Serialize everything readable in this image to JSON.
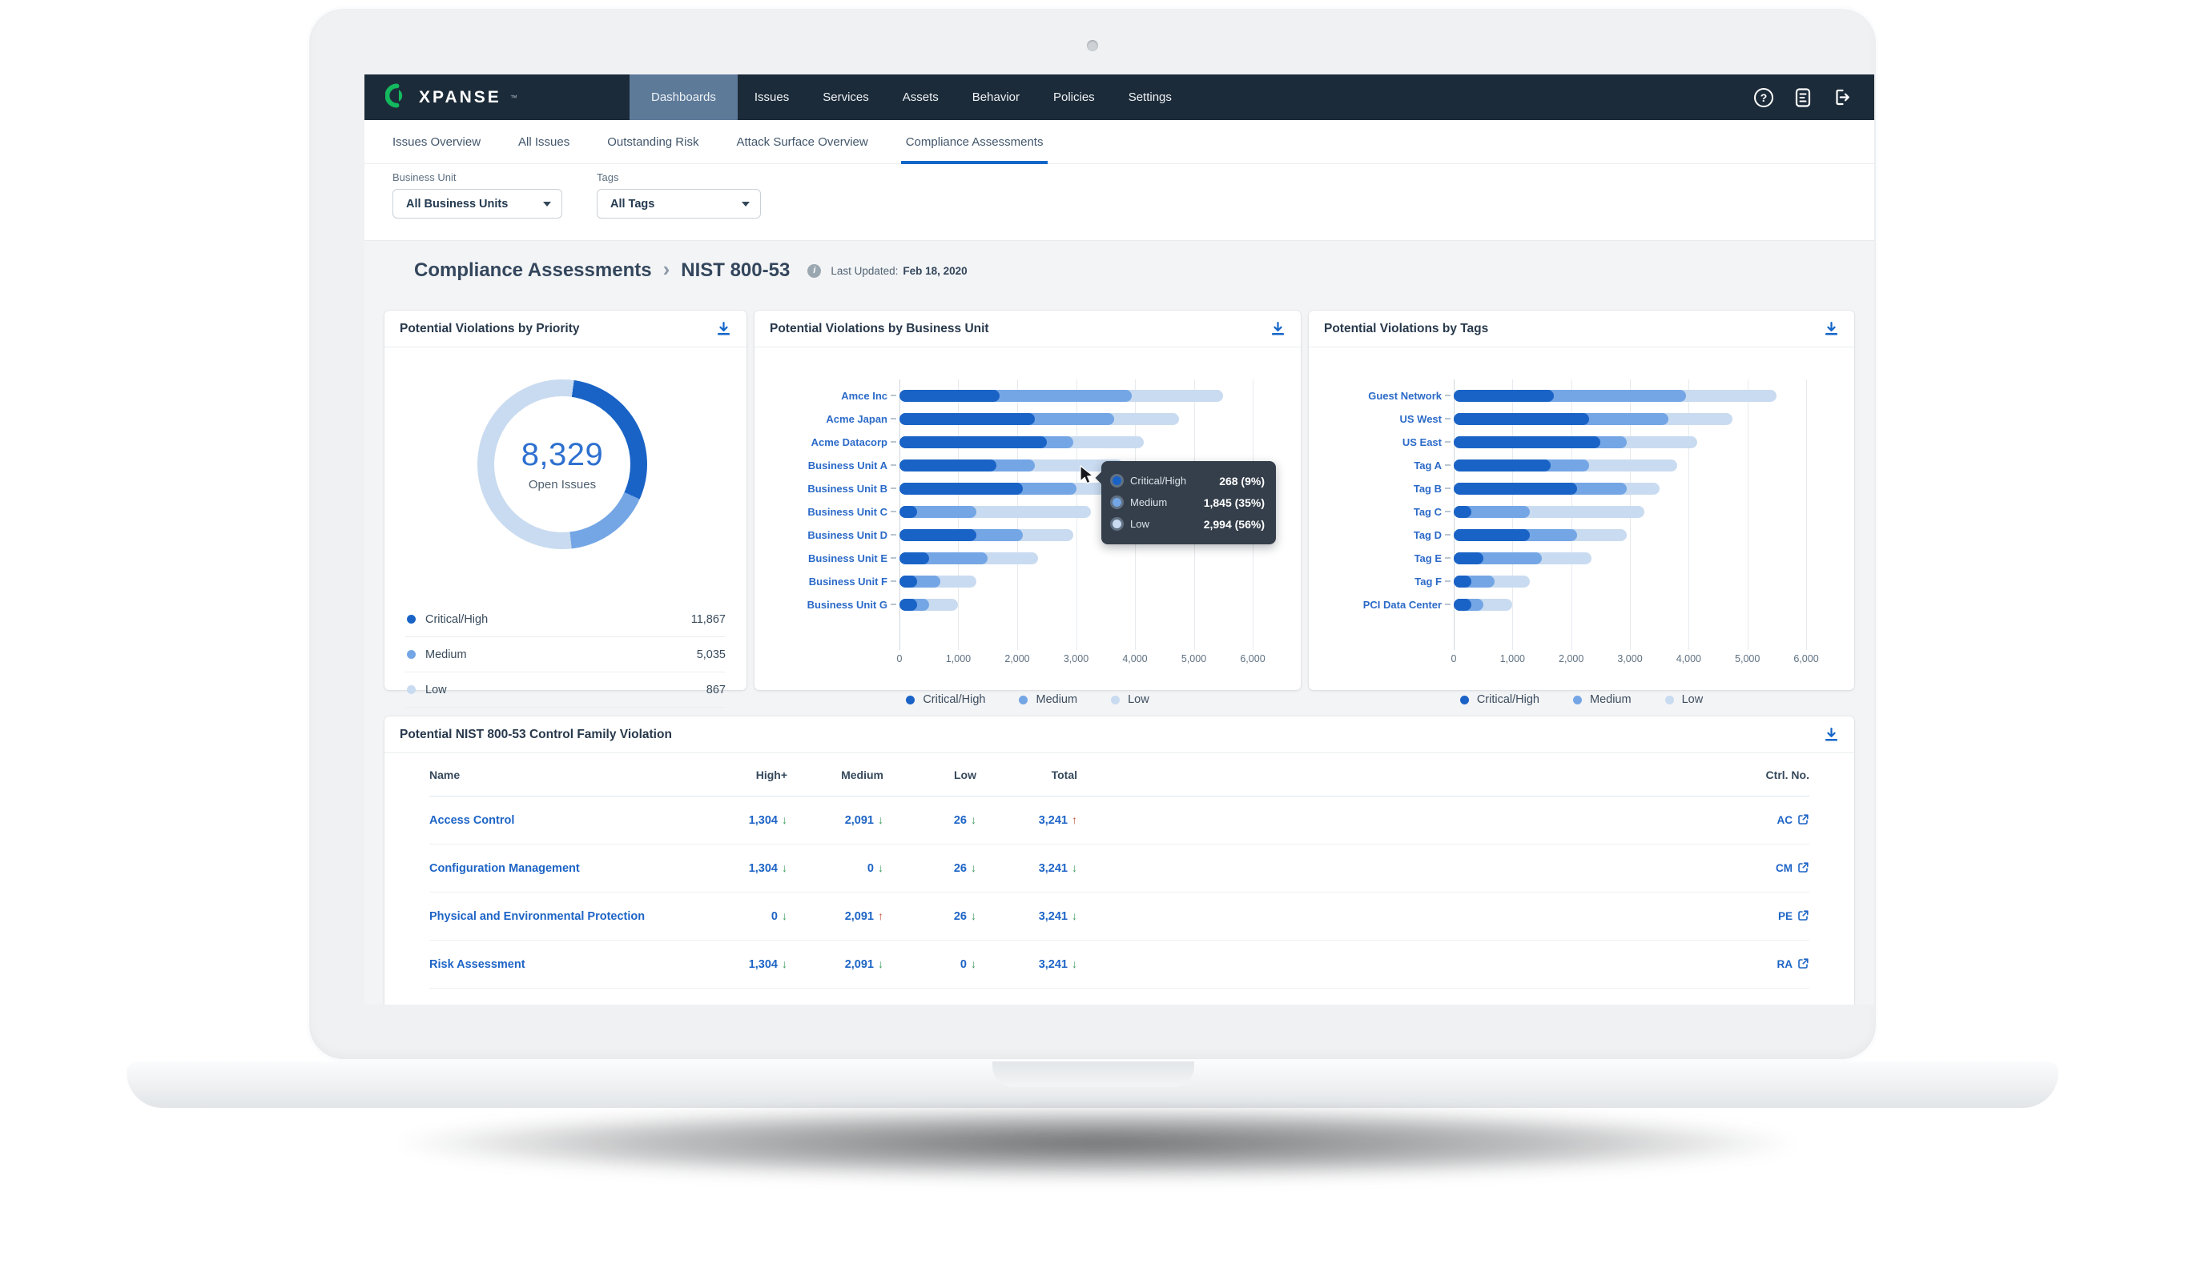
{
  "device": {
    "type": "laptop-mockup"
  },
  "colors": {
    "critical": "#1a63c6",
    "medium": "#74a6e5",
    "low": "#c9dbf0",
    "accent": "#1566c9",
    "nav_bg": "#1c2b39",
    "nav_active_bg": "#5d7a99",
    "green": "#3f9e63",
    "red": "#c4513e",
    "link_blue": "#1d64c6"
  },
  "nav": {
    "brand": "XPANSE",
    "brand_mark": "™",
    "items": [
      {
        "label": "Dashboards",
        "active": true
      },
      {
        "label": "Issues",
        "active": false
      },
      {
        "label": "Services",
        "active": false
      },
      {
        "label": "Assets",
        "active": false
      },
      {
        "label": "Behavior",
        "active": false
      },
      {
        "label": "Policies",
        "active": false
      },
      {
        "label": "Settings",
        "active": false
      }
    ],
    "icons": [
      {
        "name": "help-icon",
        "glyph": "?"
      },
      {
        "name": "document-icon"
      },
      {
        "name": "logout-icon"
      }
    ]
  },
  "tabs": [
    {
      "label": "Issues Overview",
      "active": false
    },
    {
      "label": "All Issues",
      "active": false
    },
    {
      "label": "Outstanding Risk",
      "active": false
    },
    {
      "label": "Attack Surface Overview",
      "active": false
    },
    {
      "label": "Compliance Assessments",
      "active": true
    }
  ],
  "filters": {
    "business_unit": {
      "label": "Business Unit",
      "value": "All Business Units"
    },
    "tags": {
      "label": "Tags",
      "value": "All Tags"
    }
  },
  "page": {
    "crumb_root": "Compliance Assessments",
    "crumb_current": "NIST 800-53",
    "last_updated_label": "Last Updated:",
    "last_updated_value": "Feb 18, 2020"
  },
  "severity_legend": [
    {
      "label": "Critical/High",
      "color_key": "critical"
    },
    {
      "label": "Medium",
      "color_key": "medium"
    },
    {
      "label": "Low",
      "color_key": "low"
    }
  ],
  "cards": {
    "priority": {
      "title": "Potential Violations by Priority",
      "center_value": "8,329",
      "center_label": "Open Issues",
      "legend": [
        {
          "label": "Critical/High",
          "value": "11,867",
          "color_key": "critical"
        },
        {
          "label": "Medium",
          "value": "5,035",
          "color_key": "medium"
        },
        {
          "label": "Low",
          "value": "867",
          "color_key": "low"
        }
      ]
    },
    "business_unit": {
      "title": "Potential Violations by Business Unit",
      "tooltip": {
        "rows": [
          {
            "label": "Critical/High",
            "value": "268 (9%)",
            "color_key": "critical"
          },
          {
            "label": "Medium",
            "value": "1,845 (35%)",
            "color_key": "medium"
          },
          {
            "label": "Low",
            "value": "2,994 (56%)",
            "color_key": "low"
          }
        ]
      }
    },
    "tags": {
      "title": "Potential Violations by Tags"
    }
  },
  "chart_data": [
    {
      "type": "pie",
      "variant": "donut",
      "title": "Potential Violations by Priority",
      "labels": [
        "Critical/High",
        "Medium",
        "Low"
      ],
      "values": [
        11867,
        5035,
        867
      ],
      "center_text": "8,329",
      "center_sub": "Open Issues",
      "visual_arc_percents": [
        29.5,
        16.5,
        54
      ],
      "start_angle_deg": 8,
      "legend_position": "bottom-list"
    },
    {
      "type": "bar",
      "orientation": "horizontal",
      "stacked": true,
      "title": "Potential Violations by Business Unit",
      "categories": [
        "Amce Inc",
        "Acme Japan",
        "Acme Datacorp",
        "Business Unit A",
        "Business Unit B",
        "Business Unit C",
        "Business Unit D",
        "Business Unit E",
        "Business Unit F",
        "Business Unit G"
      ],
      "series": [
        {
          "name": "Critical/High",
          "color_key": "critical",
          "values": [
            1700,
            2300,
            2500,
            1650,
            2100,
            300,
            1300,
            500,
            300,
            300
          ]
        },
        {
          "name": "Medium",
          "color_key": "medium",
          "values": [
            2250,
            1350,
            450,
            650,
            900,
            1000,
            800,
            1000,
            400,
            200
          ]
        },
        {
          "name": "Low",
          "color_key": "low",
          "values": [
            1550,
            1100,
            1200,
            1500,
            700,
            1950,
            850,
            850,
            600,
            500
          ]
        }
      ],
      "xlim": [
        0,
        6000
      ],
      "xticks": [
        "0",
        "1,000",
        "2,000",
        "3,000",
        "4,000",
        "5,000",
        "6,000"
      ],
      "grid": true,
      "legend_position": "bottom"
    },
    {
      "type": "bar",
      "orientation": "horizontal",
      "stacked": true,
      "title": "Potential Violations by Tags",
      "categories": [
        "Guest Network",
        "US West",
        "US East",
        "Tag A",
        "Tag B",
        "Tag C",
        "Tag D",
        "Tag E",
        "Tag F",
        "PCI Data Center"
      ],
      "series": [
        {
          "name": "Critical/High",
          "color_key": "critical",
          "values": [
            1700,
            2300,
            2500,
            1650,
            2100,
            300,
            1300,
            500,
            300,
            300
          ]
        },
        {
          "name": "Medium",
          "color_key": "medium",
          "values": [
            2250,
            1350,
            450,
            650,
            850,
            1000,
            800,
            1000,
            400,
            200
          ]
        },
        {
          "name": "Low",
          "color_key": "low",
          "values": [
            1550,
            1100,
            1200,
            1500,
            550,
            1950,
            850,
            850,
            600,
            500
          ]
        }
      ],
      "xlim": [
        0,
        6000
      ],
      "xticks": [
        "0",
        "1,000",
        "2,000",
        "3,000",
        "4,000",
        "5,000",
        "6,000"
      ],
      "grid": true,
      "legend_position": "bottom"
    }
  ],
  "table": {
    "title": "Potential NIST 800-53 Control Family Violation",
    "columns": [
      "Name",
      "High+",
      "Medium",
      "Low",
      "Total",
      "Ctrl. No."
    ],
    "trend_glyphs": {
      "down": "↓",
      "up": "↑"
    },
    "rows": [
      {
        "name": "Access Control",
        "high": {
          "value": "1,304",
          "dir": "down"
        },
        "medium": {
          "value": "2,091",
          "dir": "down"
        },
        "low": {
          "value": "26",
          "dir": "down"
        },
        "total": {
          "value": "3,241",
          "dir": "up"
        },
        "ctrl": "AC"
      },
      {
        "name": "Configuration Management",
        "high": {
          "value": "1,304",
          "dir": "down"
        },
        "medium": {
          "value": "0",
          "dir": "down"
        },
        "low": {
          "value": "26",
          "dir": "down"
        },
        "total": {
          "value": "3,241",
          "dir": "down"
        },
        "ctrl": "CM"
      },
      {
        "name": "Physical and Environmental Protection",
        "high": {
          "value": "0",
          "dir": "down"
        },
        "medium": {
          "value": "2,091",
          "dir": "up"
        },
        "low": {
          "value": "26",
          "dir": "down"
        },
        "total": {
          "value": "3,241",
          "dir": "down"
        },
        "ctrl": "PE"
      },
      {
        "name": "Risk Assessment",
        "high": {
          "value": "1,304",
          "dir": "down"
        },
        "medium": {
          "value": "2,091",
          "dir": "down"
        },
        "low": {
          "value": "0",
          "dir": "down"
        },
        "total": {
          "value": "3,241",
          "dir": "down"
        },
        "ctrl": "RA"
      }
    ]
  }
}
